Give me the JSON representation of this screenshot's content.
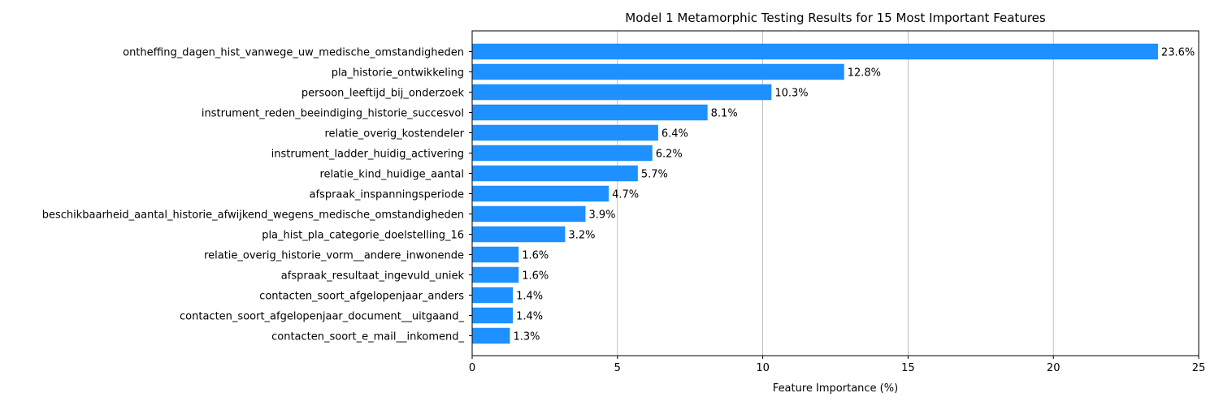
{
  "chart_data": {
    "type": "bar",
    "orientation": "horizontal",
    "title": "Model 1 Metamorphic Testing Results for 15 Most Important Features",
    "xlabel": "Feature Importance (%)",
    "ylabel": "",
    "xlim": [
      0,
      25
    ],
    "xticks": [
      0,
      5,
      10,
      15,
      20,
      25
    ],
    "grid": "x",
    "bar_color": "#1e90ff",
    "categories": [
      "ontheffing_dagen_hist_vanwege_uw_medische_omstandigheden",
      "pla_historie_ontwikkeling",
      "persoon_leeftijd_bij_onderzoek",
      "instrument_reden_beeindiging_historie_succesvol",
      "relatie_overig_kostendeler",
      "instrument_ladder_huidig_activering",
      "relatie_kind_huidige_aantal",
      "afspraak_inspanningsperiode",
      "beschikbaarheid_aantal_historie_afwijkend_wegens_medische_omstandigheden",
      "pla_hist_pla_categorie_doelstelling_16",
      "relatie_overig_historie_vorm__andere_inwonende",
      "afspraak_resultaat_ingevuld_uniek",
      "contacten_soort_afgelopenjaar_anders",
      "contacten_soort_afgelopenjaar_document__uitgaand_",
      "contacten_soort_e_mail__inkomend_"
    ],
    "values": [
      23.6,
      12.8,
      10.3,
      8.1,
      6.4,
      6.2,
      5.7,
      4.7,
      3.9,
      3.2,
      1.6,
      1.6,
      1.4,
      1.4,
      1.3
    ],
    "value_labels": [
      "23.6%",
      "12.8%",
      "10.3%",
      "8.1%",
      "6.4%",
      "6.2%",
      "5.7%",
      "4.7%",
      "3.9%",
      "3.2%",
      "1.6%",
      "1.6%",
      "1.4%",
      "1.4%",
      "1.3%"
    ]
  }
}
